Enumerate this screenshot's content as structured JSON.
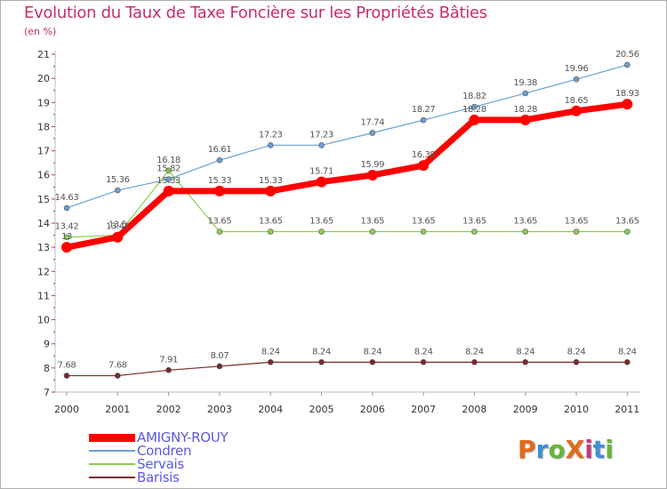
{
  "title": "Evolution du Taux de Taxe Foncière sur les Propriétés Bâties",
  "unit_label": "(en %)",
  "logo": {
    "text": "ProXiti",
    "colors": [
      "#e26b1c",
      "#3f8fd6",
      "#67b43a",
      "#e26b1c",
      "#c33a7a",
      "#3f8fd6",
      "#67b43a"
    ]
  },
  "chart_data": {
    "type": "line",
    "title": "Evolution du Taux de Taxe Foncière sur les Propriétés Bâties",
    "xlabel": "",
    "ylabel": "(en %)",
    "x": [
      "2000",
      "2001",
      "2002",
      "2003",
      "2004",
      "2005",
      "2006",
      "2007",
      "2008",
      "2009",
      "2010",
      "2011"
    ],
    "ylim": [
      7,
      21
    ],
    "yticks": [
      "7",
      "8",
      "9",
      "10",
      "11",
      "12",
      "13",
      "14",
      "15",
      "16",
      "17",
      "18",
      "19",
      "20",
      "21"
    ],
    "series": [
      {
        "name": "AMIGNY-ROUY",
        "color": "#ff0000",
        "values": [
          13.0,
          13.42,
          15.33,
          15.33,
          15.33,
          15.71,
          15.99,
          16.39,
          18.28,
          18.28,
          18.65,
          18.93
        ],
        "labels": [
          "13",
          "13.42",
          "15.33",
          "15.33",
          "15.33",
          "15.71",
          "15.99",
          "16.39",
          "18.28",
          "18.28",
          "18.65",
          "18.93"
        ]
      },
      {
        "name": "Condren",
        "color": "#6b9fd0",
        "values": [
          14.63,
          15.36,
          15.82,
          16.61,
          17.23,
          17.23,
          17.74,
          18.27,
          18.82,
          19.38,
          19.96,
          20.56
        ],
        "labels": [
          "14.63",
          "15.36",
          "15.82",
          "16.61",
          "17.23",
          "17.23",
          "17.74",
          "18.27",
          "18.82",
          "19.38",
          "19.96",
          "20.56"
        ]
      },
      {
        "name": "Servais",
        "color": "#8ad04a",
        "values": [
          13.42,
          13.5,
          16.18,
          13.65,
          13.65,
          13.65,
          13.65,
          13.65,
          13.65,
          13.65,
          13.65,
          13.65
        ],
        "labels": [
          "13.42",
          "13.5",
          "16.18",
          "13.65",
          "13.65",
          "13.65",
          "13.65",
          "13.65",
          "13.65",
          "13.65",
          "13.65",
          "13.65"
        ]
      },
      {
        "name": "Barisis",
        "color": "#7a2a2a",
        "values": [
          7.68,
          7.68,
          7.91,
          8.07,
          8.24,
          8.24,
          8.24,
          8.24,
          8.24,
          8.24,
          8.24,
          8.24
        ],
        "labels": [
          "7.68",
          "7.68",
          "7.91",
          "8.07",
          "8.24",
          "8.24",
          "8.24",
          "8.24",
          "8.24",
          "8.24",
          "8.24",
          "8.24"
        ]
      }
    ],
    "legend": "bottom-left"
  }
}
